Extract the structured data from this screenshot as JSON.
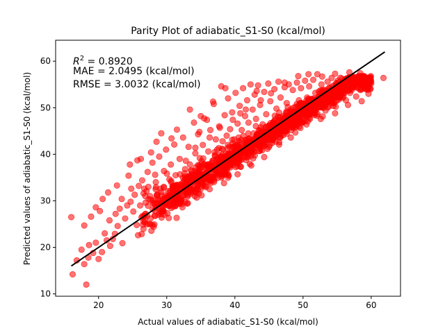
{
  "chart_data": {
    "type": "scatter",
    "title": "Parity Plot of adiabatic_S1-S0 (kcal/mol)",
    "xlabel": "Actual values of adiabatic_S1-S0 (kcal/mol)",
    "ylabel": "Predicted values of adiabatic_S1-S0 (kcal/mol)",
    "xlim": [
      13.7,
      64.3
    ],
    "ylim": [
      9.5,
      64.5
    ],
    "xticks": [
      20,
      30,
      40,
      50,
      60
    ],
    "yticks": [
      10,
      20,
      30,
      40,
      50,
      60
    ],
    "grid": false,
    "marker_color": "#ff0000",
    "marker_alpha": 0.55,
    "fit_line": {
      "color": "#000000",
      "x": [
        16.0,
        62.0
      ],
      "y": [
        16.0,
        62.0
      ]
    },
    "annotations": {
      "r2_prefix": "R",
      "r2_sup": "2",
      "r2_value": " = 0.8920",
      "mae": "MAE = 2.0495 (kcal/mol)",
      "rmse": "RMSE = 3.0032 (kcal/mol)"
    },
    "points": [
      [
        16.0,
        26.5
      ],
      [
        16.2,
        14.2
      ],
      [
        16.8,
        17.2
      ],
      [
        17.5,
        19.5
      ],
      [
        17.9,
        16.4
      ],
      [
        18.2,
        12.0
      ],
      [
        18.5,
        17.8
      ],
      [
        18.6,
        20.5
      ],
      [
        19.2,
        18.8
      ],
      [
        19.6,
        21.0
      ],
      [
        20.0,
        17.5
      ],
      [
        20.2,
        27.8
      ],
      [
        20.5,
        19.0
      ],
      [
        20.9,
        23.0
      ],
      [
        21.2,
        21.5
      ],
      [
        21.6,
        25.8
      ],
      [
        22.1,
        21.8
      ],
      [
        22.4,
        22.9
      ],
      [
        22.8,
        24.6
      ],
      [
        23.1,
        28.3
      ],
      [
        23.4,
        30.4
      ],
      [
        23.9,
        26.2
      ],
      [
        24.2,
        29.0
      ],
      [
        24.4,
        35.4
      ],
      [
        24.8,
        32.6
      ],
      [
        25.1,
        27.7
      ],
      [
        25.3,
        31.3
      ],
      [
        25.6,
        24.8
      ],
      [
        25.9,
        33.2
      ],
      [
        26.1,
        29.0
      ],
      [
        26.4,
        34.4
      ],
      [
        26.6,
        31.6
      ],
      [
        26.9,
        27.2
      ],
      [
        27.2,
        36.2
      ],
      [
        27.3,
        33.0
      ],
      [
        27.6,
        30.3
      ],
      [
        27.9,
        38.2
      ],
      [
        28.2,
        29.4
      ],
      [
        28.4,
        34.0
      ],
      [
        28.6,
        31.2
      ],
      [
        28.9,
        39.5
      ],
      [
        29.1,
        32.6
      ],
      [
        29.4,
        28.8
      ],
      [
        29.6,
        36.4
      ],
      [
        29.9,
        41.0
      ],
      [
        30.2,
        30.6
      ],
      [
        30.4,
        34.6
      ],
      [
        30.6,
        37.8
      ],
      [
        30.9,
        32.3
      ],
      [
        31.1,
        42.1
      ],
      [
        31.3,
        35.5
      ],
      [
        31.6,
        30.8
      ],
      [
        31.9,
        39.0
      ],
      [
        32.1,
        33.4
      ],
      [
        32.4,
        43.6
      ],
      [
        32.7,
        36.8
      ],
      [
        32.9,
        34.3
      ],
      [
        33.2,
        41.6
      ],
      [
        33.4,
        37.8
      ],
      [
        33.7,
        35.6
      ],
      [
        34.0,
        46.8
      ],
      [
        34.2,
        40.2
      ],
      [
        34.5,
        36.3
      ],
      [
        34.8,
        44.8
      ],
      [
        35.0,
        48.2
      ],
      [
        35.3,
        42.0
      ],
      [
        35.6,
        37.8
      ],
      [
        35.9,
        47.4
      ],
      [
        36.1,
        40.6
      ],
      [
        36.4,
        45.2
      ],
      [
        36.7,
        38.6
      ],
      [
        36.9,
        50.8
      ],
      [
        37.2,
        43.2
      ],
      [
        37.4,
        41.0
      ],
      [
        37.7,
        46.0
      ],
      [
        38.0,
        54.6
      ],
      [
        38.2,
        42.8
      ],
      [
        38.5,
        48.4
      ],
      [
        38.8,
        44.0
      ],
      [
        39.0,
        52.0
      ],
      [
        39.3,
        45.4
      ],
      [
        39.6,
        49.0
      ],
      [
        39.9,
        43.2
      ],
      [
        40.1,
        53.2
      ],
      [
        40.4,
        46.6
      ],
      [
        40.7,
        50.4
      ],
      [
        41.0,
        45.2
      ],
      [
        41.2,
        54.2
      ],
      [
        41.5,
        48.2
      ],
      [
        41.8,
        51.6
      ],
      [
        42.0,
        46.8
      ],
      [
        42.3,
        55.0
      ],
      [
        42.6,
        49.6
      ],
      [
        42.9,
        52.8
      ],
      [
        43.1,
        47.6
      ],
      [
        43.4,
        54.8
      ],
      [
        43.7,
        50.6
      ],
      [
        44.0,
        44.4
      ],
      [
        44.3,
        53.4
      ],
      [
        44.6,
        48.6
      ],
      [
        44.9,
        55.2
      ],
      [
        45.2,
        51.4
      ],
      [
        45.5,
        46.0
      ],
      [
        45.8,
        54.0
      ],
      [
        46.1,
        49.8
      ],
      [
        46.4,
        55.6
      ],
      [
        46.7,
        52.2
      ],
      [
        47.0,
        47.4
      ],
      [
        47.3,
        54.4
      ],
      [
        47.6,
        51.0
      ],
      [
        47.9,
        55.0
      ],
      [
        48.2,
        49.2
      ],
      [
        48.5,
        53.8
      ],
      [
        48.8,
        45.8
      ],
      [
        49.1,
        55.4
      ],
      [
        49.4,
        51.6
      ],
      [
        49.7,
        54.2
      ],
      [
        50.0,
        49.6
      ],
      [
        50.3,
        55.8
      ],
      [
        50.6,
        52.2
      ],
      [
        50.9,
        54.6
      ],
      [
        51.2,
        50.8
      ],
      [
        51.5,
        56.0
      ],
      [
        51.8,
        53.2
      ],
      [
        52.1,
        57.2
      ],
      [
        52.4,
        51.2
      ],
      [
        52.7,
        55.0
      ],
      [
        53.0,
        53.8
      ],
      [
        53.3,
        49.4
      ],
      [
        53.6,
        55.6
      ],
      [
        53.9,
        52.6
      ],
      [
        54.2,
        56.4
      ],
      [
        54.5,
        53.4
      ],
      [
        54.8,
        50.2
      ],
      [
        55.1,
        55.8
      ],
      [
        55.4,
        52.8
      ],
      [
        55.7,
        56.2
      ],
      [
        56.0,
        54.0
      ],
      [
        56.3,
        51.6
      ],
      [
        56.6,
        55.4
      ],
      [
        56.9,
        53.2
      ],
      [
        57.2,
        56.0
      ],
      [
        57.5,
        54.6
      ],
      [
        57.8,
        52.4
      ],
      [
        58.1,
        55.2
      ],
      [
        58.4,
        53.8
      ],
      [
        58.7,
        56.6
      ],
      [
        59.0,
        54.4
      ],
      [
        59.3,
        55.6
      ],
      [
        59.6,
        53.0
      ],
      [
        60.0,
        55.2
      ],
      [
        61.8,
        56.4
      ],
      [
        33.4,
        49.6
      ],
      [
        35.5,
        47.7
      ],
      [
        38.6,
        54.2
      ],
      [
        40.8,
        48.8
      ],
      [
        43.2,
        53.6
      ],
      [
        36.8,
        51.3
      ],
      [
        34.6,
        44.3
      ],
      [
        31.5,
        45.3
      ],
      [
        29.2,
        44.5
      ],
      [
        30.7,
        43.4
      ],
      [
        28.5,
        42.7
      ],
      [
        27.7,
        40.4
      ],
      [
        26.2,
        39.0
      ],
      [
        25.7,
        38.7
      ],
      [
        24.6,
        37.8
      ],
      [
        22.7,
        33.3
      ],
      [
        21.4,
        31.8
      ],
      [
        20.6,
        30.4
      ],
      [
        19.6,
        28.6
      ],
      [
        18.9,
        26.6
      ],
      [
        17.9,
        24.7
      ],
      [
        22.5,
        27.2
      ],
      [
        24.7,
        29.8
      ],
      [
        26.7,
        32.6
      ],
      [
        28.3,
        35.6
      ],
      [
        32.8,
        38.6
      ],
      [
        34.2,
        41.4
      ],
      [
        36.3,
        43.6
      ],
      [
        37.8,
        45.7
      ],
      [
        39.7,
        47.4
      ],
      [
        41.6,
        49.6
      ],
      [
        43.8,
        51.6
      ],
      [
        45.3,
        53.1
      ],
      [
        47.3,
        55.4
      ],
      [
        49.3,
        56.8
      ],
      [
        50.8,
        57.2
      ],
      [
        52.8,
        56.7
      ],
      [
        54.7,
        57.3
      ],
      [
        56.8,
        57.6
      ],
      [
        58.4,
        57.4
      ],
      [
        30.3,
        26.3
      ],
      [
        32.3,
        28.6
      ],
      [
        34.4,
        30.7
      ],
      [
        36.3,
        32.5
      ],
      [
        38.4,
        33.8
      ],
      [
        40.4,
        35.7
      ],
      [
        42.4,
        37.6
      ],
      [
        44.3,
        39.4
      ],
      [
        46.5,
        42.1
      ],
      [
        48.2,
        43.6
      ],
      [
        50.5,
        46.4
      ],
      [
        52.6,
        47.6
      ],
      [
        54.7,
        48.8
      ],
      [
        56.6,
        50.6
      ],
      [
        58.6,
        51.4
      ],
      [
        25.8,
        22.6
      ],
      [
        27.9,
        24.8
      ],
      [
        23.5,
        20.9
      ],
      [
        21.7,
        20.3
      ]
    ]
  }
}
